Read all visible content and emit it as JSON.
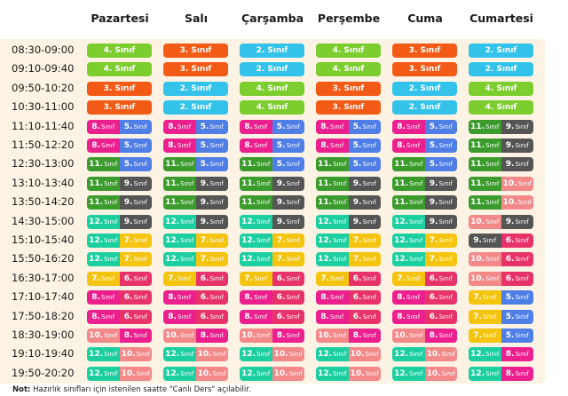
{
  "days": [
    "Pazartesi",
    "Salı",
    "Çarşamba",
    "Perşembe",
    "Cuma",
    "Cumartesi"
  ],
  "colors": {
    "4": "#7ccd2e",
    "3": "#f25a16",
    "2": "#33c2ea",
    "8": "#ec1f8e",
    "5": "#4f7ee6",
    "11": "#3b9c2d",
    "9": "#555555",
    "12": "#1ccfa0",
    "7": "#f4c40f",
    "10": "#f4898a",
    "6": "#e8336a"
  },
  "grade_label": "Sınıf",
  "rows": [
    {
      "time": "08:30-09:00",
      "cells": [
        [
          "4"
        ],
        [
          "3"
        ],
        [
          "2"
        ],
        [
          "4"
        ],
        [
          "3"
        ],
        [
          "2"
        ]
      ]
    },
    {
      "time": "09:10-09:40",
      "cells": [
        [
          "4"
        ],
        [
          "3"
        ],
        [
          "2"
        ],
        [
          "4"
        ],
        [
          "3"
        ],
        [
          "2"
        ]
      ]
    },
    {
      "time": "09:50-10:20",
      "cells": [
        [
          "3"
        ],
        [
          "2"
        ],
        [
          "4"
        ],
        [
          "3"
        ],
        [
          "2"
        ],
        [
          "4"
        ]
      ]
    },
    {
      "time": "10:30-11:00",
      "cells": [
        [
          "3"
        ],
        [
          "2"
        ],
        [
          "4"
        ],
        [
          "3"
        ],
        [
          "2"
        ],
        [
          "4"
        ]
      ]
    },
    {
      "time": "11:10-11:40",
      "cells": [
        [
          "8",
          "5"
        ],
        [
          "8",
          "5"
        ],
        [
          "8",
          "5"
        ],
        [
          "8",
          "5"
        ],
        [
          "8",
          "5"
        ],
        [
          "11",
          "9"
        ]
      ]
    },
    {
      "time": "11:50-12:20",
      "cells": [
        [
          "8",
          "5"
        ],
        [
          "8",
          "5"
        ],
        [
          "8",
          "5"
        ],
        [
          "8",
          "5"
        ],
        [
          "8",
          "5"
        ],
        [
          "11",
          "9"
        ]
      ]
    },
    {
      "time": "12:30-13:00",
      "cells": [
        [
          "11",
          "5"
        ],
        [
          "11",
          "5"
        ],
        [
          "11",
          "5"
        ],
        [
          "11",
          "5"
        ],
        [
          "11",
          "5"
        ],
        [
          "11",
          "9"
        ]
      ]
    },
    {
      "time": "13:10-13:40",
      "cells": [
        [
          "11",
          "9"
        ],
        [
          "11",
          "9"
        ],
        [
          "11",
          "9"
        ],
        [
          "11",
          "9"
        ],
        [
          "11",
          "9"
        ],
        [
          "11",
          "10"
        ]
      ]
    },
    {
      "time": "13:50-14:20",
      "cells": [
        [
          "11",
          "9"
        ],
        [
          "11",
          "9"
        ],
        [
          "11",
          "9"
        ],
        [
          "11",
          "9"
        ],
        [
          "11",
          "9"
        ],
        [
          "11",
          "10"
        ]
      ]
    },
    {
      "time": "14:30-15:00",
      "cells": [
        [
          "12",
          "9"
        ],
        [
          "12",
          "9"
        ],
        [
          "12",
          "9"
        ],
        [
          "12",
          "9"
        ],
        [
          "12",
          "9"
        ],
        [
          "10",
          "9"
        ]
      ]
    },
    {
      "time": "15:10-15:40",
      "cells": [
        [
          "12",
          "7"
        ],
        [
          "12",
          "7"
        ],
        [
          "12",
          "7"
        ],
        [
          "12",
          "7"
        ],
        [
          "12",
          "7"
        ],
        [
          "9",
          "6"
        ]
      ]
    },
    {
      "time": "15:50-16:20",
      "cells": [
        [
          "12",
          "7"
        ],
        [
          "12",
          "7"
        ],
        [
          "12",
          "7"
        ],
        [
          "12",
          "7"
        ],
        [
          "12",
          "7"
        ],
        [
          "10",
          "6"
        ]
      ]
    },
    {
      "time": "16:30-17:00",
      "cells": [
        [
          "7",
          "6"
        ],
        [
          "7",
          "6"
        ],
        [
          "7",
          "6"
        ],
        [
          "7",
          "6"
        ],
        [
          "7",
          "6"
        ],
        [
          "10",
          "6"
        ]
      ]
    },
    {
      "time": "17:10-17:40",
      "cells": [
        [
          "8",
          "6"
        ],
        [
          "8",
          "6"
        ],
        [
          "8",
          "6"
        ],
        [
          "8",
          "6"
        ],
        [
          "8",
          "6"
        ],
        [
          "7",
          "5"
        ]
      ]
    },
    {
      "time": "17:50-18:20",
      "cells": [
        [
          "8",
          "6"
        ],
        [
          "8",
          "6"
        ],
        [
          "8",
          "6"
        ],
        [
          "8",
          "6"
        ],
        [
          "8",
          "6"
        ],
        [
          "7",
          "5"
        ]
      ]
    },
    {
      "time": "18:30-19:00",
      "cells": [
        [
          "10",
          "8"
        ],
        [
          "10",
          "8"
        ],
        [
          "10",
          "8"
        ],
        [
          "10",
          "8"
        ],
        [
          "10",
          "8"
        ],
        [
          "7",
          "5"
        ]
      ]
    },
    {
      "time": "19:10-19:40",
      "cells": [
        [
          "12",
          "10"
        ],
        [
          "12",
          "10"
        ],
        [
          "12",
          "10"
        ],
        [
          "12",
          "10"
        ],
        [
          "12",
          "10"
        ],
        [
          "12",
          "8"
        ]
      ]
    },
    {
      "time": "19:50-20:20",
      "cells": [
        [
          "12",
          "10"
        ],
        [
          "12",
          "10"
        ],
        [
          "12",
          "10"
        ],
        [
          "12",
          "10"
        ],
        [
          "12",
          "10"
        ],
        [
          "12",
          "8"
        ]
      ]
    }
  ],
  "note": {
    "label": "Not:",
    "text": " Hazırlık sınıfları için istenilen saatte \"Canlı Ders\" açılabilir."
  }
}
